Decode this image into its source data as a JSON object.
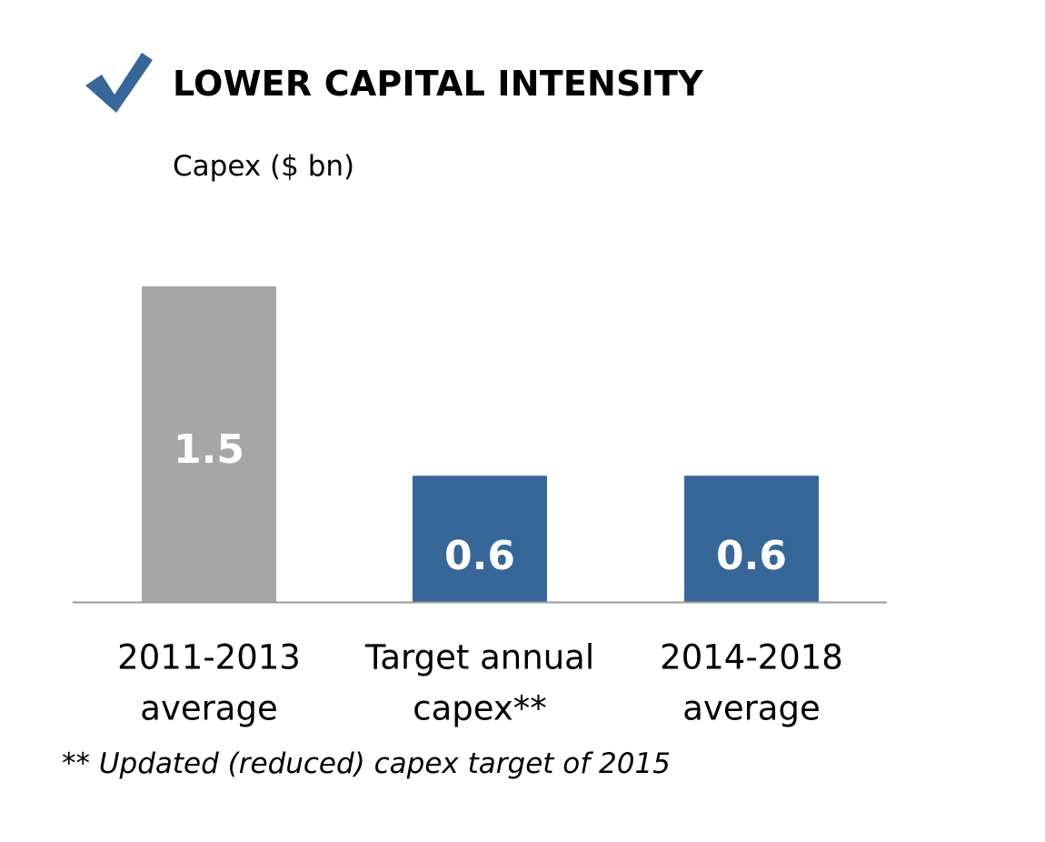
{
  "header": {
    "title": "LOWER CAPITAL INTENSITY",
    "icon": "check-icon"
  },
  "footnote": "** Updated (reduced) capex target of 2015",
  "chart_data": {
    "type": "bar",
    "title": "LOWER CAPITAL INTENSITY",
    "ylabel": "Capex ($ bn)",
    "xlabel": "",
    "categories": [
      [
        "2011-2013",
        "average"
      ],
      [
        "Target annual",
        "capex**"
      ],
      [
        "2014-2018",
        "average"
      ]
    ],
    "values": [
      1.5,
      0.6,
      0.6
    ],
    "value_labels": [
      "1.5",
      "0.6",
      "0.6"
    ],
    "colors": [
      "#a6a6a6",
      "#376699",
      "#376699"
    ],
    "label_color": "#ffffff",
    "ylim": [
      0,
      1.5
    ],
    "grid": false,
    "legend": "none"
  }
}
